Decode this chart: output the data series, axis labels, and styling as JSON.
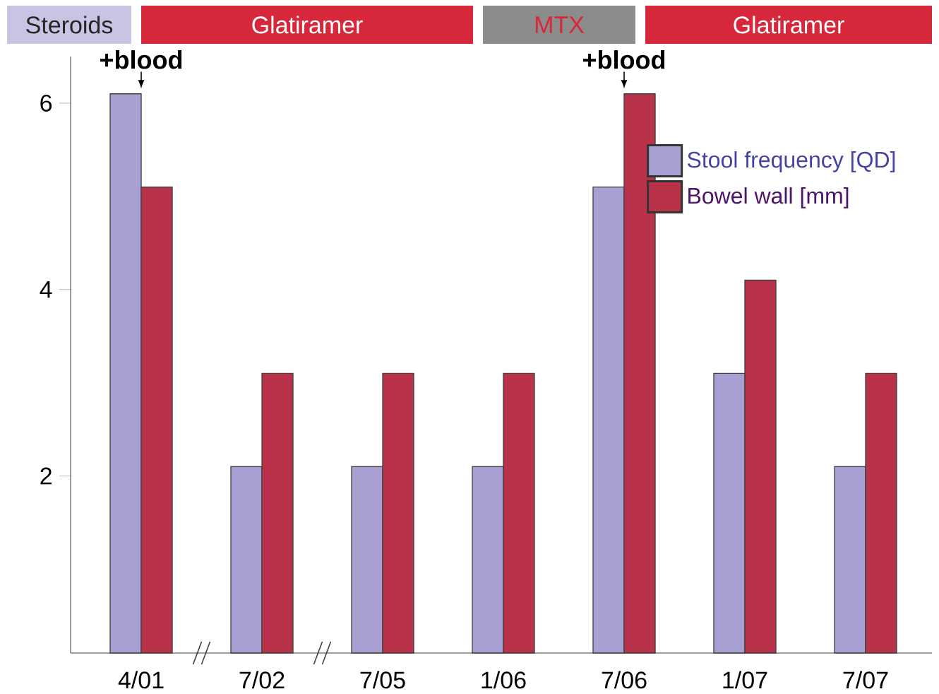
{
  "chart_data": {
    "type": "bar",
    "categories": [
      "4/01",
      "7/02",
      "7/05",
      "1/06",
      "7/06",
      "1/07",
      "7/07"
    ],
    "series": [
      {
        "name": "Stool frequency [QD]",
        "color": "#a89fd2",
        "values": [
          6.1,
          2.1,
          2.1,
          2.1,
          5.1,
          3.1,
          2.1
        ]
      },
      {
        "name": "Bowel wall [mm]",
        "color": "#b8334a",
        "values": [
          5.1,
          3.1,
          3.1,
          3.1,
          6.1,
          4.1,
          3.1
        ]
      }
    ],
    "ylim": [
      0.1,
      6.5
    ],
    "yticks": [
      2,
      4,
      6
    ],
    "legend": "top right",
    "grid": false,
    "annotations": [
      "Steroids",
      "Glatiramer",
      "MTX",
      "Glatiramer",
      {
        "text": "+blood",
        "x": "4/01",
        "y": 6.1
      },
      {
        "text": "+blood",
        "x": "7/06",
        "y": 6.1
      }
    ]
  }
}
